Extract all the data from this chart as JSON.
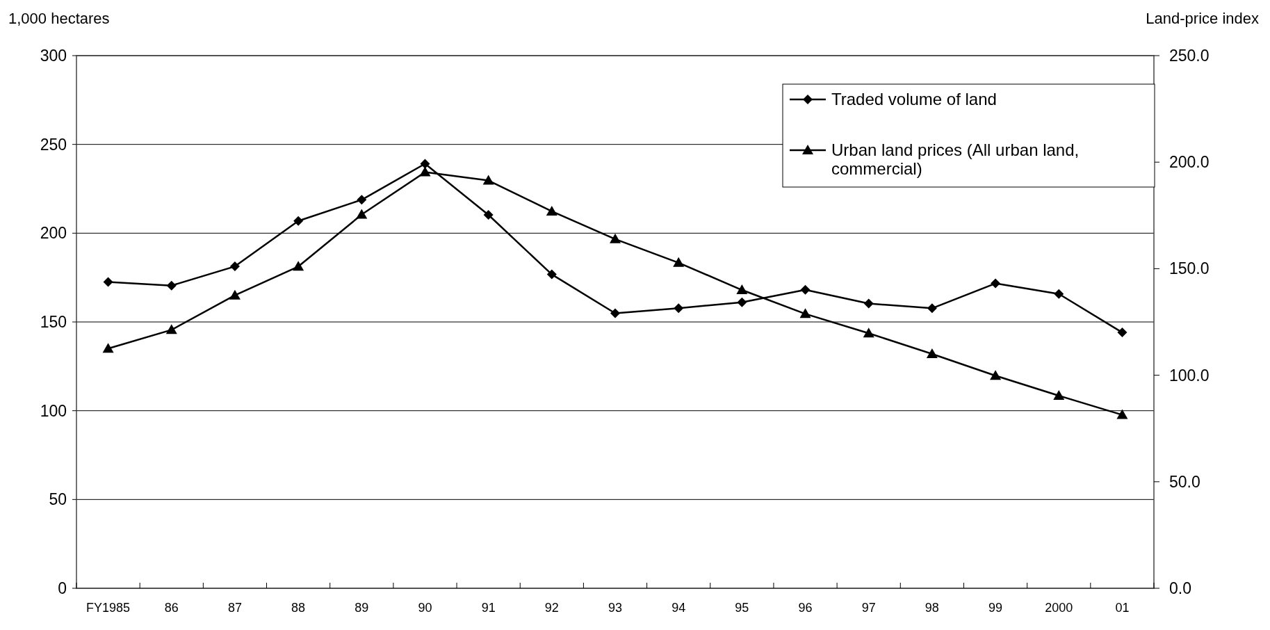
{
  "chart_data": {
    "type": "line",
    "ylabel": "1,000 hectares",
    "y2label": "Land-price index",
    "categories": [
      "FY1985",
      "86",
      "87",
      "88",
      "89",
      "90",
      "91",
      "92",
      "93",
      "94",
      "95",
      "96",
      "97",
      "98",
      "99",
      "2000",
      "01"
    ],
    "series": [
      {
        "name": "Traded volume of land",
        "color": "#000000",
        "marker": "diamond",
        "values": [
          172.5,
          170.5,
          181.3,
          206.9,
          218.8,
          239.1,
          210.3,
          176.8,
          154.9,
          157.7,
          161.1,
          168.1,
          160.4,
          157.7,
          171.7,
          165.8,
          144.1
        ]
      },
      {
        "name": "Urban land prices (All urban land, commercial)",
        "color": "#000000",
        "marker": "triangle",
        "axis": "y2",
        "values": [
          112.5,
          121.3,
          137.5,
          151.0,
          175.4,
          195.3,
          191.4,
          176.9,
          163.9,
          152.8,
          140.0,
          128.8,
          119.7,
          110.0,
          99.8,
          90.4,
          81.4
        ]
      }
    ],
    "ylim": [
      0,
      300
    ],
    "yticks": [
      0,
      50,
      100,
      150,
      200,
      250,
      300
    ],
    "y2lim": [
      0,
      250
    ],
    "y2ticks": [
      {
        "value": 0,
        "label": "0.0"
      },
      {
        "value": 50,
        "label": "50.0"
      },
      {
        "value": 100,
        "label": "100.0"
      },
      {
        "value": 150,
        "label": "150.0"
      },
      {
        "value": 200,
        "label": "200.0"
      },
      {
        "value": 250,
        "label": "250.0"
      }
    ],
    "grid": "y",
    "legend": "top right",
    "line_style": "solid"
  }
}
